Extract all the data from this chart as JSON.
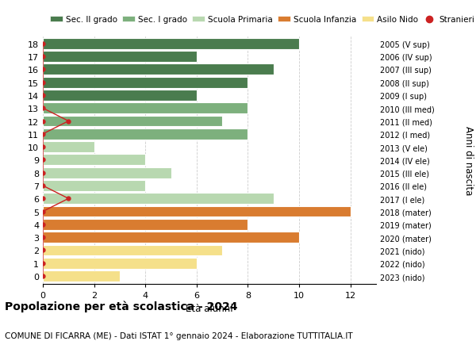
{
  "ages": [
    18,
    17,
    16,
    15,
    14,
    13,
    12,
    11,
    10,
    9,
    8,
    7,
    6,
    5,
    4,
    3,
    2,
    1,
    0
  ],
  "years": [
    "2005 (V sup)",
    "2006 (IV sup)",
    "2007 (III sup)",
    "2008 (II sup)",
    "2009 (I sup)",
    "2010 (III med)",
    "2011 (II med)",
    "2012 (I med)",
    "2013 (V ele)",
    "2014 (IV ele)",
    "2015 (III ele)",
    "2016 (II ele)",
    "2017 (I ele)",
    "2018 (mater)",
    "2019 (mater)",
    "2020 (mater)",
    "2021 (nido)",
    "2022 (nido)",
    "2023 (nido)"
  ],
  "values": [
    10,
    6,
    9,
    8,
    6,
    8,
    7,
    8,
    2,
    4,
    5,
    4,
    9,
    12,
    8,
    10,
    7,
    6,
    3
  ],
  "bar_colors": [
    "#4a7c4e",
    "#4a7c4e",
    "#4a7c4e",
    "#4a7c4e",
    "#4a7c4e",
    "#7db07d",
    "#7db07d",
    "#7db07d",
    "#b8d8b0",
    "#b8d8b0",
    "#b8d8b0",
    "#b8d8b0",
    "#b8d8b0",
    "#d97c30",
    "#d97c30",
    "#d97c30",
    "#f5e08a",
    "#f5e08a",
    "#f5e08a"
  ],
  "stranieri_ages": [
    18,
    17,
    16,
    15,
    14,
    13,
    12,
    11,
    10,
    9,
    8,
    7,
    6,
    5,
    4,
    3,
    2,
    1,
    0
  ],
  "stranieri_values": [
    0,
    0,
    0,
    0,
    0,
    0,
    1,
    0,
    0,
    0,
    0,
    0,
    1,
    0,
    0,
    0,
    0,
    0,
    0
  ],
  "legend_labels": [
    "Sec. II grado",
    "Sec. I grado",
    "Scuola Primaria",
    "Scuola Infanzia",
    "Asilo Nido",
    "Stranieri"
  ],
  "legend_colors": [
    "#4a7c4e",
    "#7db07d",
    "#b8d8b0",
    "#d97c30",
    "#f5e08a",
    "#cc2222"
  ],
  "xlabel_label": "Età alunni",
  "ylabel_label": "Anni di nascita",
  "title": "Popolazione per età scolastica - 2024",
  "subtitle": "COMUNE DI FICARRA (ME) - Dati ISTAT 1° gennaio 2024 - Elaborazione TUTTITALIA.IT",
  "xlim": [
    0,
    13
  ],
  "xticks": [
    0,
    2,
    4,
    6,
    8,
    10,
    12
  ],
  "bar_height": 0.85,
  "stranieri_color": "#cc2222",
  "line_color": "#cc2222",
  "background_color": "#ffffff"
}
